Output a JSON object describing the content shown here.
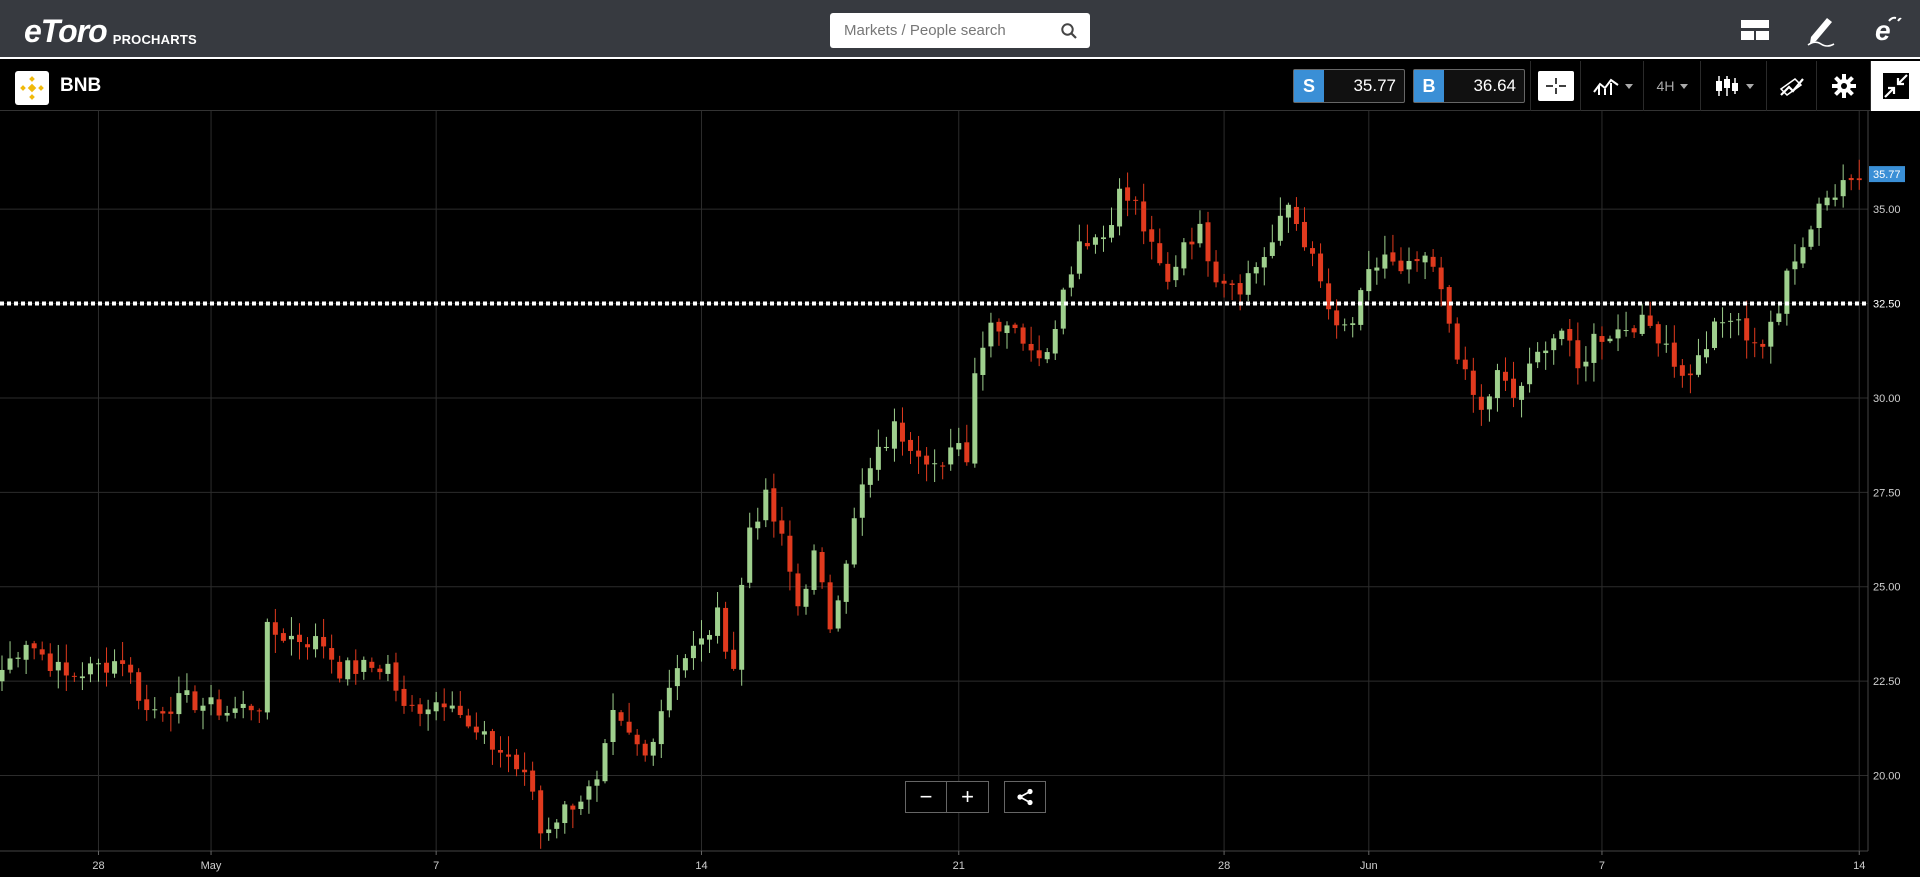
{
  "app": {
    "logo_text": "eToro",
    "logo_sub": "PROCHARTS"
  },
  "search": {
    "placeholder": "Markets / People search"
  },
  "top_icons": [
    "layout-icon",
    "pencil-icon",
    "etoro-profile-icon"
  ],
  "instrument": {
    "symbol": "BNB",
    "sell_label": "S",
    "sell_price": "35.77",
    "buy_label": "B",
    "buy_price": "36.64",
    "timeframe": "4H"
  },
  "colors": {
    "up": "#9fd08e",
    "down": "#e03a1e",
    "accent": "#3a8fd6",
    "grid": "#2c2c2c"
  },
  "zoom": {
    "minus": "−",
    "plus": "+"
  },
  "chart_data": {
    "type": "candlestick",
    "y_ticks": [
      "35.00",
      "32.50",
      "30.00",
      "27.50",
      "25.00",
      "22.50",
      "20.00"
    ],
    "ylim": [
      18.0,
      37.6
    ],
    "x_ticks": [
      {
        "label": "28",
        "i": 12
      },
      {
        "label": "May",
        "i": 26
      },
      {
        "label": "7",
        "i": 54
      },
      {
        "label": "14",
        "i": 87
      },
      {
        "label": "21",
        "i": 119
      },
      {
        "label": "28",
        "i": 152
      },
      {
        "label": "Jun",
        "i": 170
      },
      {
        "label": "7",
        "i": 199
      },
      {
        "label": "14",
        "i": 231
      }
    ],
    "current_price": "35.77",
    "current_value": 35.77,
    "level_label": "32.50",
    "level_value": 32.5,
    "path": [
      [
        0,
        22.8
      ],
      [
        3,
        23.6
      ],
      [
        8,
        22.6
      ],
      [
        15,
        23.1
      ],
      [
        18,
        21.7
      ],
      [
        23,
        22.0
      ],
      [
        28,
        21.7
      ],
      [
        32,
        21.9
      ],
      [
        33,
        23.8
      ],
      [
        40,
        23.5
      ],
      [
        42,
        22.8
      ],
      [
        48,
        22.9
      ],
      [
        50,
        21.7
      ],
      [
        56,
        22.1
      ],
      [
        58,
        21.2
      ],
      [
        63,
        20.5
      ],
      [
        66,
        19.6
      ],
      [
        67,
        18.5
      ],
      [
        71,
        19.3
      ],
      [
        74,
        19.7
      ],
      [
        76,
        21.5
      ],
      [
        80,
        20.5
      ],
      [
        82,
        21.8
      ],
      [
        84,
        23.0
      ],
      [
        87,
        23.5
      ],
      [
        89,
        24.2
      ],
      [
        91,
        22.9
      ],
      [
        92,
        25.0
      ],
      [
        93,
        26.6
      ],
      [
        95,
        27.3
      ],
      [
        97,
        26.2
      ],
      [
        99,
        24.5
      ],
      [
        101,
        25.8
      ],
      [
        103,
        24.0
      ],
      [
        105,
        25.8
      ],
      [
        107,
        27.6
      ],
      [
        109,
        28.5
      ],
      [
        111,
        29.2
      ],
      [
        115,
        28.5
      ],
      [
        117,
        28.0
      ],
      [
        119,
        29.0
      ],
      [
        120,
        28.3
      ],
      [
        121,
        30.9
      ],
      [
        123,
        32.0
      ],
      [
        126,
        32.0
      ],
      [
        128,
        31.1
      ],
      [
        130,
        31.4
      ],
      [
        132,
        32.8
      ],
      [
        134,
        34.2
      ],
      [
        137,
        34.3
      ],
      [
        139,
        35.4
      ],
      [
        141,
        35.1
      ],
      [
        143,
        33.9
      ],
      [
        145,
        33.0
      ],
      [
        147,
        34.2
      ],
      [
        149,
        34.4
      ],
      [
        151,
        33.3
      ],
      [
        154,
        33.0
      ],
      [
        156,
        33.5
      ],
      [
        158,
        34.1
      ],
      [
        160,
        35.1
      ],
      [
        162,
        34.2
      ],
      [
        164,
        33.0
      ],
      [
        166,
        31.7
      ],
      [
        168,
        32.0
      ],
      [
        170,
        33.2
      ],
      [
        172,
        33.8
      ],
      [
        174,
        33.2
      ],
      [
        176,
        33.6
      ],
      [
        178,
        33.4
      ],
      [
        180,
        32.0
      ],
      [
        182,
        30.5
      ],
      [
        184,
        29.6
      ],
      [
        186,
        30.6
      ],
      [
        188,
        30.0
      ],
      [
        190,
        30.7
      ],
      [
        192,
        31.5
      ],
      [
        194,
        31.8
      ],
      [
        196,
        30.7
      ],
      [
        198,
        31.6
      ],
      [
        201,
        31.8
      ],
      [
        203,
        32.0
      ],
      [
        205,
        31.9
      ],
      [
        207,
        31.5
      ],
      [
        209,
        30.5
      ],
      [
        211,
        31.0
      ],
      [
        213,
        31.8
      ],
      [
        215,
        32.1
      ],
      [
        217,
        31.7
      ],
      [
        219,
        31.4
      ],
      [
        221,
        32.2
      ],
      [
        222,
        33.6
      ],
      [
        224,
        34.0
      ],
      [
        226,
        35.2
      ],
      [
        228,
        35.4
      ],
      [
        229,
        35.77
      ]
    ]
  }
}
